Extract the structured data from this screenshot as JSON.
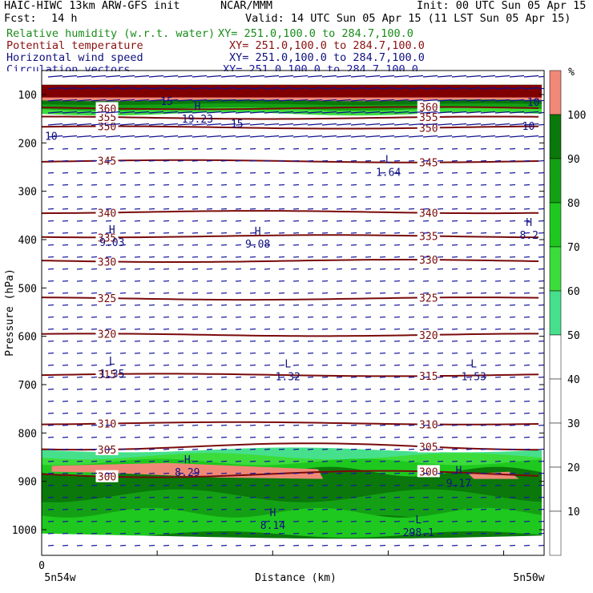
{
  "header": {
    "model": "HAIC-HIWC 13km ARW-GFS init",
    "org": "NCAR/MMM",
    "init": "Init: 00 UTC Sun 05 Apr 15",
    "fcst_label": "Fcst:",
    "fcst_value": "14 h",
    "valid": "Valid: 14 UTC Sun 05 Apr 15 (11 LST Sun 05 Apr 15)"
  },
  "fields": [
    {
      "name": "Relative humidity (w.r.t. water)",
      "xy": "XY= 251.0,100.0 to 284.7,100.0",
      "color": "#1a8c1a"
    },
    {
      "name": "Potential temperature",
      "xy": "XY= 251.0,100.0 to 284.7,100.0",
      "color": "#8b1010"
    },
    {
      "name": "Horizontal wind speed",
      "xy": "XY= 251.0,100.0 to 284.7,100.0",
      "color": "#101080"
    },
    {
      "name": "Circulation vectors",
      "xy": "XY= 251.0,100.0 to 284.7,100.0",
      "color": "#1a1aa0"
    }
  ],
  "chart_data": {
    "type": "cross-section",
    "ylabel": "Pressure (hPa)",
    "xlabel": "Distance (km)",
    "x_left_label": "5n54w",
    "x_right_label": "5n50w",
    "x_zero_label": "0",
    "y_ticks": [
      100,
      200,
      300,
      400,
      500,
      600,
      700,
      800,
      900,
      1000
    ],
    "ylim": [
      80,
      1050
    ],
    "rh_colorbar": {
      "unit": "%",
      "levels": [
        10,
        20,
        30,
        40,
        50,
        60,
        70,
        80,
        90,
        100
      ],
      "colors": [
        "#ffffff",
        "#ffffff",
        "#ffffff",
        "#ffffff",
        "#ffffff",
        "#46e08c",
        "#3cdc3c",
        "#1ec81e",
        "#14a014",
        "#0a780a",
        "#f08878"
      ]
    },
    "theta_contours": [
      {
        "value": 300,
        "p": 885
      },
      {
        "value": 305,
        "p": 828
      },
      {
        "value": 310,
        "p": 780
      },
      {
        "value": 315,
        "p": 680
      },
      {
        "value": 320,
        "p": 597
      },
      {
        "value": 325,
        "p": 522
      },
      {
        "value": 330,
        "p": 444
      },
      {
        "value": 335,
        "p": 393
      },
      {
        "value": 340,
        "p": 343
      },
      {
        "value": 345,
        "p": 238
      },
      {
        "value": 350,
        "p": 168
      },
      {
        "value": 355,
        "p": 148
      },
      {
        "value": 360,
        "p": 128
      }
    ],
    "extrema_labels": [
      {
        "type": "H",
        "value": "19.23",
        "d": 0.31,
        "p": 145
      },
      {
        "type": "L",
        "value": "1.64",
        "d": 0.69,
        "p": 255
      },
      {
        "type": "H",
        "value": "8.2",
        "d": 0.97,
        "p": 385
      },
      {
        "type": "H",
        "value": "9.03",
        "d": 0.14,
        "p": 400
      },
      {
        "type": "H",
        "value": "9.08",
        "d": 0.43,
        "p": 403
      },
      {
        "type": "L",
        "value": "1.35",
        "d": 0.14,
        "p": 672
      },
      {
        "type": "L",
        "value": "1.32",
        "d": 0.49,
        "p": 678
      },
      {
        "type": "L",
        "value": "1.53",
        "d": 0.86,
        "p": 678
      },
      {
        "type": "H",
        "value": "8.29",
        "d": 0.29,
        "p": 876
      },
      {
        "type": "H",
        "value": "9.17",
        "d": 0.83,
        "p": 898
      },
      {
        "type": "H",
        "value": "8.14",
        "d": 0.46,
        "p": 985
      },
      {
        "type": "L",
        "value": "298.1",
        "d": 0.75,
        "p": 1000
      }
    ],
    "wind_labels": [
      {
        "value": "15",
        "d": 0.23,
        "p": 113
      },
      {
        "value": "15",
        "d": 0.37,
        "p": 160
      },
      {
        "value": "10",
        "d": 0.96,
        "p": 115
      },
      {
        "value": "10",
        "d": 0.95,
        "p": 165
      },
      {
        "value": "10",
        "d": 0.0,
        "p": 185
      }
    ]
  }
}
